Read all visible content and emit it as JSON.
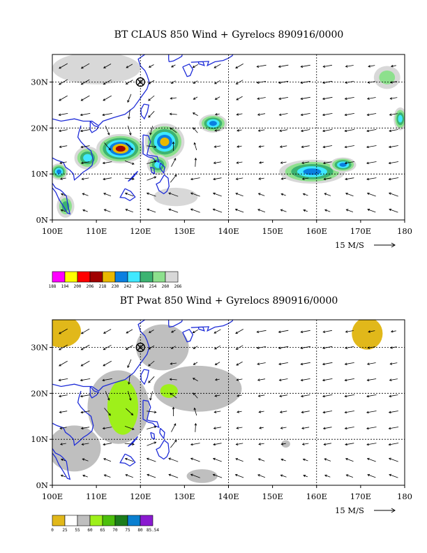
{
  "chart_data": [
    {
      "type": "heatmap",
      "title": "BT CLAUS 850 Wind + Gyrelocs 890916/0000",
      "x_ticks": [
        "100E",
        "110E",
        "120E",
        "130E",
        "140E",
        "150E",
        "160E",
        "170E",
        "180"
      ],
      "y_ticks": [
        "0N",
        "10N",
        "20N",
        "30N"
      ],
      "xlim": [
        100,
        180
      ],
      "ylim": [
        0,
        36
      ],
      "grid": true,
      "reference_vector": {
        "label": "15 M/S",
        "speed": 15
      },
      "gyre_center": {
        "lon": 120,
        "lat": 30
      },
      "colorbar": {
        "labels": [
          "188",
          "194",
          "200",
          "206",
          "218",
          "230",
          "242",
          "248",
          "254",
          "260",
          "266"
        ],
        "colors": [
          "#ff00ff",
          "#ffff00",
          "#ff0000",
          "#a00000",
          "#e9b800",
          "#0a7fe0",
          "#40e8ff",
          "#3cb371",
          "#8de08d",
          "#d8d8d8"
        ]
      },
      "field_blobs": [
        {
          "lon": 115.5,
          "lat": 15.5,
          "rx": 5.5,
          "ry": 3.2,
          "bands": 7
        },
        {
          "lon": 125.5,
          "lat": 17.0,
          "rx": 4.5,
          "ry": 4.0,
          "bands": 6
        },
        {
          "lon": 136.5,
          "lat": 21.0,
          "rx": 3.2,
          "ry": 2.0,
          "bands": 5
        },
        {
          "lon": 108.0,
          "lat": 13.5,
          "rx": 3.0,
          "ry": 2.5,
          "bands": 4
        },
        {
          "lon": 101.5,
          "lat": 10.5,
          "rx": 2.0,
          "ry": 1.8,
          "bands": 5
        },
        {
          "lon": 124.0,
          "lat": 12.0,
          "rx": 2.5,
          "ry": 2.2,
          "bands": 4
        },
        {
          "lon": 159.0,
          "lat": 10.5,
          "rx": 7.5,
          "ry": 2.6,
          "bands": 5
        },
        {
          "lon": 166.0,
          "lat": 12.0,
          "rx": 3.0,
          "ry": 1.6,
          "bands": 5
        },
        {
          "lon": 179.0,
          "lat": 22.0,
          "rx": 1.5,
          "ry": 2.5,
          "bands": 4
        },
        {
          "lon": 176.0,
          "lat": 31.0,
          "rx": 3.0,
          "ry": 2.5,
          "bands": 2
        },
        {
          "lon": 110.0,
          "lat": 33.0,
          "rx": 10.0,
          "ry": 3.5,
          "bands": 1
        },
        {
          "lon": 128.0,
          "lat": 5.0,
          "rx": 5.0,
          "ry": 2.0,
          "bands": 1
        },
        {
          "lon": 103.0,
          "lat": 3.0,
          "rx": 2.0,
          "ry": 2.5,
          "bands": 3
        }
      ]
    },
    {
      "type": "heatmap",
      "title": "BT Pwat 850 Wind + Gyrelocs 890916/0000",
      "x_ticks": [
        "100E",
        "110E",
        "120E",
        "130E",
        "140E",
        "150E",
        "160E",
        "170E",
        "180"
      ],
      "y_ticks": [
        "0N",
        "10N",
        "20N",
        "30N"
      ],
      "xlim": [
        100,
        180
      ],
      "ylim": [
        0,
        36
      ],
      "grid": true,
      "reference_vector": {
        "label": "15 M/S",
        "speed": 15
      },
      "gyre_center": {
        "lon": 120,
        "lat": 30
      },
      "colorbar": {
        "labels": [
          "0",
          "25",
          "55",
          "60",
          "65",
          "70",
          "75",
          "80",
          "85.54"
        ],
        "colors": [
          "#e1b81a",
          "#ffffff",
          "#bfbfbf",
          "#9ef01a",
          "#4cbf0c",
          "#1c7d1c",
          "#0a7fd0",
          "#8a1ad0"
        ]
      },
      "field_blobs": [
        {
          "lon": 102.0,
          "lat": 33.5,
          "rx": 4.5,
          "ry": 3.5,
          "cat": 0
        },
        {
          "lon": 171.5,
          "lat": 33.0,
          "rx": 3.5,
          "ry": 3.5,
          "cat": 0
        },
        {
          "lon": 125.0,
          "lat": 30.0,
          "rx": 6.0,
          "ry": 5.0,
          "cat": 2
        },
        {
          "lon": 133.0,
          "lat": 21.0,
          "rx": 10.0,
          "ry": 5.0,
          "cat": 2
        },
        {
          "lon": 115.0,
          "lat": 17.0,
          "rx": 7.0,
          "ry": 8.0,
          "cat": 2
        },
        {
          "lon": 105.0,
          "lat": 8.0,
          "rx": 6.0,
          "ry": 5.0,
          "cat": 2
        },
        {
          "lon": 116.0,
          "lat": 17.0,
          "rx": 3.5,
          "ry": 6.0,
          "cat": 3
        },
        {
          "lon": 126.5,
          "lat": 20.5,
          "rx": 2.0,
          "ry": 1.5,
          "cat": 3
        },
        {
          "lon": 134.0,
          "lat": 2.0,
          "rx": 3.5,
          "ry": 1.5,
          "cat": 2
        },
        {
          "lon": 153.0,
          "lat": 9.0,
          "rx": 1.0,
          "ry": 0.8,
          "cat": 2
        }
      ]
    }
  ]
}
